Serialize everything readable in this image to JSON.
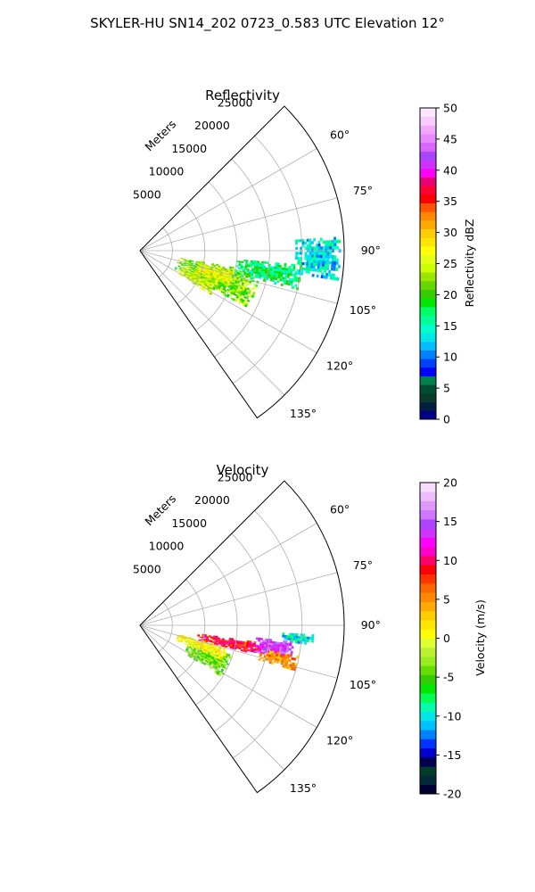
{
  "figure": {
    "title": "SKYLER-HU  SN14_202  0723_0.583 UTC Elevation 12°"
  },
  "chart_data": [
    {
      "type": "heatmap",
      "projection": "polar-sector",
      "title": "Reflectivity",
      "radial_label": "Meters",
      "radial_ticks": [
        5000,
        10000,
        15000,
        20000,
        25000
      ],
      "radial_tick_labels": [
        "5000",
        "10000",
        "15000",
        "20000",
        "25000"
      ],
      "r_max": 31500,
      "theta_range_deg": [
        45,
        145
      ],
      "theta_ticks": [
        "60°",
        "75°",
        "90°",
        "105°",
        "120°",
        "135°"
      ],
      "theta_tick_values": [
        60,
        75,
        90,
        105,
        120,
        135
      ],
      "grid": true,
      "colorbar": {
        "label": "Reflectivity dBZ",
        "range": [
          0,
          50
        ],
        "ticks": [
          "0",
          "5",
          "10",
          "15",
          "20",
          "25",
          "30",
          "35",
          "40",
          "45",
          "50"
        ],
        "tick_values": [
          0,
          5,
          10,
          15,
          20,
          25,
          30,
          35,
          40,
          45,
          50
        ],
        "colormap": "pyart_NWSRef"
      },
      "echo_regions": [
        {
          "az": [
            100,
            118
          ],
          "r": [
            6000,
            19000
          ],
          "value": 22
        },
        {
          "az": [
            102,
            112
          ],
          "r": [
            9000,
            15000
          ],
          "value": 26
        },
        {
          "az": [
            112,
            122
          ],
          "r": [
            7000,
            13000
          ],
          "value": 25
        },
        {
          "az": [
            95,
            104
          ],
          "r": [
            15000,
            25000
          ],
          "value": 17
        },
        {
          "az": [
            86,
            99
          ],
          "r": [
            24000,
            31000
          ],
          "value": 13
        }
      ]
    },
    {
      "type": "heatmap",
      "projection": "polar-sector",
      "title": "Velocity",
      "radial_label": "Meters",
      "radial_ticks": [
        5000,
        10000,
        15000,
        20000,
        25000
      ],
      "radial_tick_labels": [
        "5000",
        "10000",
        "15000",
        "20000",
        "25000"
      ],
      "r_max": 31500,
      "theta_range_deg": [
        45,
        145
      ],
      "theta_ticks": [
        "60°",
        "75°",
        "90°",
        "105°",
        "120°",
        "135°"
      ],
      "theta_tick_values": [
        60,
        75,
        90,
        105,
        120,
        135
      ],
      "grid": true,
      "colorbar": {
        "label": "Velocity (m/s)",
        "range": [
          -20,
          20
        ],
        "ticks": [
          "-20",
          "-15",
          "-10",
          "-5",
          "0",
          "5",
          "10",
          "15",
          "20"
        ],
        "tick_values": [
          -20,
          -15,
          -10,
          -5,
          0,
          5,
          10,
          15,
          20
        ],
        "colormap": "pyart_BuDRd18"
      },
      "echo_regions": [
        {
          "az": [
            108,
            122
          ],
          "r": [
            8000,
            15000
          ],
          "value": -4
        },
        {
          "az": [
            103,
            113
          ],
          "r": [
            6000,
            14000
          ],
          "value": 1
        },
        {
          "az": [
            98,
            104
          ],
          "r": [
            9000,
            19000
          ],
          "value": 9
        },
        {
          "az": [
            96,
            103
          ],
          "r": [
            18000,
            24000
          ],
          "value": 14
        },
        {
          "az": [
            93,
            97
          ],
          "r": [
            22000,
            27000
          ],
          "value": -10
        },
        {
          "az": [
            101,
            106
          ],
          "r": [
            19000,
            25000
          ],
          "value": 5
        }
      ]
    }
  ]
}
